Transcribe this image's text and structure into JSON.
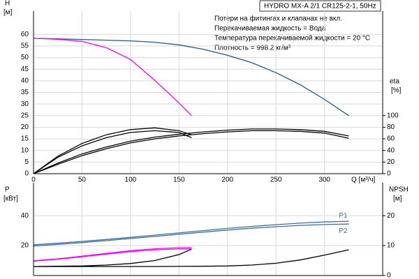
{
  "chart_data": [
    {
      "type": "line",
      "title": "HYDRO MX-A 2/1 CR125-2-1, 50Hz",
      "annotations": [
        "Потери на фитингах и клапанах не вкл.",
        "Перекачиваемая жидкость = Вода",
        "Температура перекачиваемой жидкости = 20 °C",
        "Плотность = 998.2 кг/м³"
      ],
      "ylabel": "H",
      "yunit": "[м]",
      "y2label": "eta",
      "y2unit": "[%]",
      "xlabel": "Q [м³/ч]",
      "xlim": [
        0,
        360
      ],
      "xticks": [
        0,
        50,
        100,
        150,
        200,
        250,
        300
      ],
      "ylim": [
        0,
        70
      ],
      "yticks": [
        0,
        5,
        10,
        15,
        20,
        25,
        30,
        35,
        40,
        45,
        50,
        55,
        60
      ],
      "y2lim": [
        0,
        280
      ],
      "y2ticks": [
        0,
        20,
        40,
        60,
        80,
        100
      ],
      "grid": true,
      "series": [
        {
          "color": "#1f5a8a",
          "x": [
            0,
            25,
            50,
            75,
            100,
            125,
            150,
            175,
            200,
            225,
            250,
            275,
            300,
            325
          ],
          "values": [
            58.3,
            58.1,
            57.8,
            57.5,
            57.2,
            56.6,
            55.5,
            53.6,
            51,
            47.8,
            43.5,
            38.3,
            32,
            25
          ]
        },
        {
          "color": "#ff00ff",
          "x": [
            0,
            25,
            50,
            75,
            100,
            125,
            150,
            163
          ],
          "values": [
            58.3,
            57.9,
            57,
            54.3,
            49.2,
            40.2,
            30.5,
            25
          ]
        },
        {
          "color": "#000000",
          "axis": "y2",
          "x": [
            0,
            25,
            50,
            75,
            100,
            125,
            150,
            163
          ],
          "values": [
            0,
            30,
            52,
            67,
            76,
            79,
            74,
            67
          ]
        },
        {
          "color": "#000000",
          "axis": "y2",
          "x": [
            0,
            25,
            50,
            75,
            100,
            125,
            150,
            163
          ],
          "values": [
            0,
            28,
            48,
            62,
            71,
            74,
            71,
            62
          ]
        },
        {
          "color": "#000000",
          "axis": "y2",
          "x": [
            0,
            25,
            50,
            75,
            100,
            125,
            150,
            175,
            200,
            225,
            250,
            275,
            300,
            325
          ],
          "values": [
            0,
            18,
            34,
            46,
            56,
            63,
            68,
            72,
            75,
            77,
            77,
            76,
            73,
            65
          ]
        },
        {
          "color": "#000000",
          "axis": "y2",
          "x": [
            0,
            25,
            50,
            75,
            100,
            125,
            150,
            175,
            200,
            225,
            250,
            275,
            300,
            325
          ],
          "values": [
            0,
            16,
            31,
            43,
            53,
            60,
            65,
            69,
            72,
            74,
            74,
            73,
            70,
            61
          ]
        }
      ]
    },
    {
      "type": "line",
      "ylabel": "P",
      "yunit": "[кВт]",
      "y2label": "NPSH",
      "y2unit": "[м]",
      "xlim": [
        0,
        360
      ],
      "ylim": [
        0,
        62
      ],
      "yticks": [
        20,
        40
      ],
      "y2lim": [
        0,
        31
      ],
      "y2ticks": [
        0,
        10,
        20
      ],
      "grid": true,
      "series": [
        {
          "name": "P1",
          "color": "#3a6ea5",
          "x": [
            0,
            25,
            50,
            75,
            100,
            125,
            150,
            175,
            200,
            225,
            250,
            275,
            300,
            325
          ],
          "values": [
            20.5,
            21.6,
            22.8,
            24.1,
            25.5,
            27,
            28.5,
            30,
            31.5,
            32.8,
            34,
            35,
            35.8,
            36.3
          ]
        },
        {
          "name": "P2",
          "color": "#3a6ea5",
          "x": [
            0,
            25,
            50,
            75,
            100,
            125,
            150,
            175,
            200,
            225,
            250,
            275,
            300,
            325
          ],
          "values": [
            19.7,
            20.8,
            22,
            23.3,
            24.7,
            26.1,
            27.6,
            29,
            30.4,
            31.6,
            32.6,
            33.5,
            34.1,
            34.4
          ]
        },
        {
          "color": "#ff00ff",
          "x": [
            0,
            25,
            50,
            75,
            100,
            125,
            150,
            163
          ],
          "values": [
            9.9,
            11.2,
            12.9,
            14.8,
            16.6,
            17.9,
            18.6,
            18.7
          ]
        },
        {
          "color": "#ff00ff",
          "x": [
            0,
            25,
            50,
            75,
            100,
            125,
            150,
            163
          ],
          "values": [
            9.6,
            10.9,
            12.5,
            14.3,
            16,
            17.2,
            17.8,
            17.8
          ]
        },
        {
          "color": "#000000",
          "axis": "y2",
          "x": [
            0,
            25,
            50,
            75,
            100,
            125,
            150,
            163
          ],
          "values": [
            3,
            3.1,
            3.2,
            3.5,
            4,
            5,
            7,
            8.8
          ]
        },
        {
          "color": "#000000",
          "axis": "y2",
          "x": [
            0,
            25,
            50,
            75,
            100,
            125,
            150,
            175,
            200,
            225,
            250,
            275,
            300,
            325
          ],
          "values": [
            3,
            3,
            3,
            3,
            3,
            3,
            3.05,
            3.1,
            3.2,
            3.5,
            4.1,
            5.2,
            6.8,
            8.6
          ]
        }
      ]
    }
  ]
}
